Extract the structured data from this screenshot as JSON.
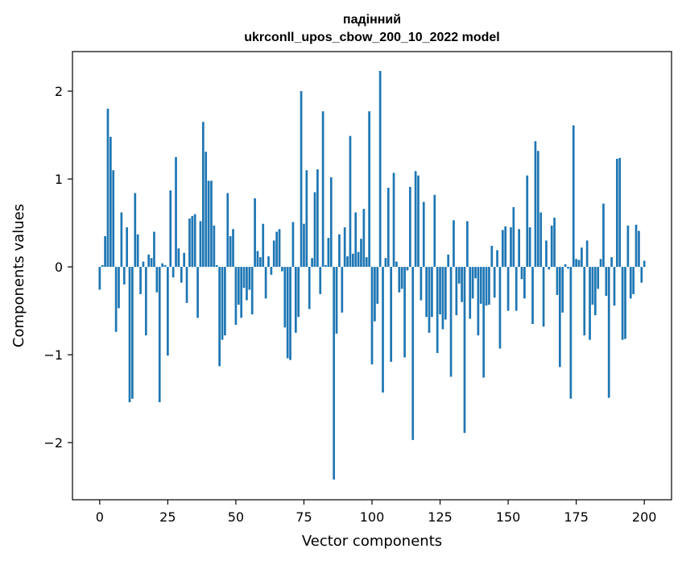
{
  "chart_data": {
    "type": "bar",
    "title_line1": "падінний",
    "title_line2": "ukrconll_upos_cbow_200_10_2022 model",
    "xlabel": "Vector components",
    "ylabel": "Components values",
    "xlim": [
      -10,
      210
    ],
    "ylim": [
      -2.65,
      2.45
    ],
    "xticks": [
      0,
      25,
      50,
      75,
      100,
      125,
      150,
      175,
      200
    ],
    "yticks": [
      -2,
      -1,
      0,
      1,
      2
    ],
    "ytick_labels": [
      "−2",
      "−1",
      "0",
      "1",
      "2"
    ],
    "bar_color": "#1f77b4",
    "grid": false,
    "legend": "none",
    "values": [
      -0.26,
      0.02,
      0.35,
      1.8,
      1.48,
      1.1,
      -0.74,
      -0.47,
      0.62,
      -0.2,
      0.45,
      -1.54,
      -1.5,
      0.84,
      0.37,
      -0.31,
      0.06,
      -0.78,
      0.14,
      0.1,
      0.4,
      -0.29,
      -1.54,
      0.04,
      0.02,
      -1.01,
      0.87,
      -0.12,
      1.25,
      0.21,
      -0.18,
      0.16,
      -0.41,
      0.55,
      0.58,
      0.6,
      -0.58,
      0.52,
      1.65,
      1.31,
      0.98,
      0.98,
      0.47,
      0.02,
      -1.13,
      -0.83,
      -0.78,
      0.84,
      0.35,
      0.43,
      -0.66,
      -0.43,
      -0.58,
      -0.24,
      -0.38,
      -0.26,
      -0.54,
      0.78,
      0.18,
      0.11,
      0.49,
      -0.36,
      0.12,
      -0.09,
      0.3,
      0.4,
      0.43,
      -0.05,
      -0.69,
      -1.04,
      -1.06,
      0.51,
      -0.75,
      -0.57,
      2.0,
      0.49,
      1.1,
      -0.48,
      0.1,
      0.85,
      1.11,
      -0.31,
      1.77,
      0.02,
      0.33,
      1.02,
      -2.42,
      -0.76,
      0.37,
      -0.52,
      0.45,
      0.12,
      1.49,
      0.15,
      0.62,
      0.17,
      0.32,
      0.66,
      0.11,
      1.77,
      -1.11,
      -0.62,
      -0.42,
      2.23,
      -1.43,
      0.1,
      0.9,
      -1.08,
      1.07,
      0.06,
      -0.29,
      -0.25,
      -1.03,
      -0.04,
      0.91,
      -1.97,
      1.09,
      1.04,
      -0.38,
      0.74,
      -0.57,
      -0.75,
      -0.57,
      0.82,
      -0.98,
      -0.54,
      -0.71,
      -0.6,
      0.14,
      -1.25,
      0.53,
      -0.55,
      -0.19,
      -0.4,
      -1.89,
      0.52,
      -0.59,
      -0.36,
      -0.13,
      -0.78,
      -0.42,
      -1.26,
      -0.44,
      -0.43,
      0.24,
      -0.35,
      0.19,
      -0.93,
      0.42,
      0.46,
      -0.5,
      0.45,
      0.68,
      -0.5,
      0.43,
      -0.14,
      -0.36,
      1.04,
      0.45,
      -0.65,
      1.43,
      1.32,
      0.62,
      -0.68,
      0.3,
      -0.03,
      0.47,
      0.56,
      -0.32,
      -1.14,
      -0.52,
      0.03,
      -0.02,
      -1.5,
      1.61,
      0.09,
      0.08,
      0.22,
      -0.78,
      0.3,
      -0.83,
      -0.43,
      -0.55,
      -0.25,
      0.09,
      0.72,
      -0.33,
      -1.49,
      0.11,
      -0.44,
      1.23,
      1.24,
      -0.83,
      -0.82,
      0.47,
      -0.36,
      -0.31,
      0.48,
      0.41,
      -0.18,
      0.07
    ]
  }
}
